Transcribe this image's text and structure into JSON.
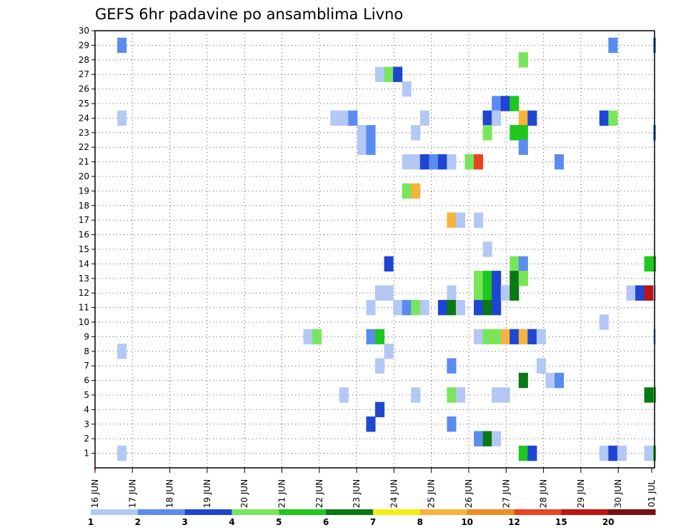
{
  "chart_data": {
    "type": "heatmap",
    "title": "GEFS 6hr padavine po ansamblima Livno",
    "xlabel": "",
    "ylabel": "",
    "x_ticks": [
      "16 JUN",
      "17 JUN",
      "18 JUN",
      "19 JUN",
      "20 JUN",
      "21 JUN",
      "22 JUN",
      "23 JUN",
      "24 JUN",
      "25 JUN",
      "26 JUN",
      "27 JUN",
      "28 JUN",
      "29 JUN",
      "30 JUN",
      "01 JUL"
    ],
    "y_ticks": [
      "1",
      "2",
      "3",
      "4",
      "5",
      "6",
      "7",
      "8",
      "9",
      "10",
      "11",
      "12",
      "13",
      "14",
      "15",
      "16",
      "17",
      "18",
      "19",
      "20",
      "21",
      "22",
      "23",
      "24",
      "25",
      "26",
      "27",
      "28",
      "29",
      "30"
    ],
    "x_range_days": [
      0,
      15.3
    ],
    "y_range": [
      0,
      30
    ],
    "grid": "dotted",
    "legend": {
      "placement": "bottom",
      "labels": [
        "1",
        "2",
        "3",
        "4",
        "5",
        "6",
        "7",
        "8",
        "10",
        "12",
        "15",
        "20"
      ],
      "colors": [
        "#b4c8f5",
        "#5a8cf0",
        "#1e46d2",
        "#78e65a",
        "#1ec81e",
        "#0a7814",
        "#f0f014",
        "#f5b43c",
        "#f08c28",
        "#e6461e",
        "#be1414",
        "#781010"
      ]
    },
    "color_bins": [
      1,
      2,
      3,
      4,
      5,
      6,
      7,
      8,
      10,
      12,
      15,
      20
    ],
    "cells": [
      [
        0.72,
        29,
        2
      ],
      [
        0.72,
        24,
        1
      ],
      [
        0.72,
        8,
        1
      ],
      [
        0.72,
        1,
        1
      ],
      [
        5.7,
        9,
        1
      ],
      [
        5.94,
        9,
        4
      ],
      [
        6.42,
        24,
        1
      ],
      [
        6.66,
        24,
        1
      ],
      [
        6.9,
        24,
        2
      ],
      [
        6.66,
        5,
        1
      ],
      [
        7.14,
        23,
        1
      ],
      [
        7.14,
        22,
        1
      ],
      [
        7.38,
        23,
        2
      ],
      [
        7.38,
        22,
        2
      ],
      [
        7.38,
        11,
        1
      ],
      [
        7.38,
        9,
        2
      ],
      [
        7.38,
        3,
        3
      ],
      [
        7.62,
        27,
        1
      ],
      [
        7.62,
        12,
        1
      ],
      [
        7.62,
        7,
        1
      ],
      [
        7.62,
        9,
        5
      ],
      [
        7.62,
        4,
        3
      ],
      [
        7.86,
        27,
        4
      ],
      [
        7.86,
        14,
        3
      ],
      [
        7.86,
        12,
        1
      ],
      [
        7.86,
        8,
        1
      ],
      [
        8.1,
        27,
        3
      ],
      [
        8.1,
        11,
        1
      ],
      [
        8.34,
        26,
        1
      ],
      [
        8.34,
        21,
        1
      ],
      [
        8.34,
        19,
        4
      ],
      [
        8.34,
        11,
        2
      ],
      [
        8.58,
        23,
        1
      ],
      [
        8.58,
        21,
        1
      ],
      [
        8.58,
        19,
        8
      ],
      [
        8.58,
        11,
        4
      ],
      [
        8.58,
        5,
        1
      ],
      [
        8.82,
        24,
        1
      ],
      [
        8.82,
        21,
        3
      ],
      [
        8.82,
        11,
        1
      ],
      [
        9.06,
        21,
        2
      ],
      [
        9.3,
        21,
        3
      ],
      [
        9.3,
        11,
        3
      ],
      [
        9.54,
        21,
        1
      ],
      [
        9.54,
        17,
        8
      ],
      [
        9.54,
        12,
        1
      ],
      [
        9.54,
        11,
        6
      ],
      [
        9.54,
        7,
        2
      ],
      [
        9.54,
        5,
        4
      ],
      [
        9.54,
        3,
        2
      ],
      [
        9.78,
        17,
        1
      ],
      [
        9.78,
        11,
        1
      ],
      [
        9.78,
        5,
        1
      ],
      [
        10.02,
        21,
        4
      ],
      [
        10.26,
        21,
        10
      ],
      [
        10.26,
        17,
        1
      ],
      [
        10.26,
        13,
        4
      ],
      [
        10.26,
        12,
        4
      ],
      [
        10.26,
        11,
        3
      ],
      [
        10.26,
        9,
        1
      ],
      [
        10.26,
        2,
        2
      ],
      [
        10.5,
        24,
        3
      ],
      [
        10.5,
        23,
        4
      ],
      [
        10.5,
        15,
        1
      ],
      [
        10.5,
        13,
        5
      ],
      [
        10.5,
        12,
        5
      ],
      [
        10.5,
        11,
        6
      ],
      [
        10.5,
        9,
        4
      ],
      [
        10.5,
        2,
        6
      ],
      [
        10.74,
        25,
        2
      ],
      [
        10.74,
        24,
        1
      ],
      [
        10.74,
        13,
        3
      ],
      [
        10.74,
        12,
        3
      ],
      [
        10.74,
        11,
        3
      ],
      [
        10.74,
        9,
        4
      ],
      [
        10.74,
        5,
        1
      ],
      [
        10.74,
        2,
        1
      ],
      [
        10.98,
        25,
        3
      ],
      [
        10.98,
        12,
        1
      ],
      [
        10.98,
        9,
        8
      ],
      [
        10.98,
        5,
        1
      ],
      [
        11.22,
        25,
        5
      ],
      [
        11.22,
        23,
        5
      ],
      [
        11.22,
        14,
        4
      ],
      [
        11.22,
        13,
        6
      ],
      [
        11.22,
        12,
        6
      ],
      [
        11.22,
        9,
        3
      ],
      [
        11.46,
        28,
        4
      ],
      [
        11.46,
        24,
        8
      ],
      [
        11.46,
        23,
        5
      ],
      [
        11.46,
        22,
        2
      ],
      [
        11.46,
        14,
        2
      ],
      [
        11.46,
        13,
        4
      ],
      [
        11.46,
        9,
        8
      ],
      [
        11.46,
        6,
        6
      ],
      [
        11.46,
        1,
        5
      ],
      [
        11.7,
        24,
        3
      ],
      [
        11.7,
        9,
        3
      ],
      [
        11.7,
        1,
        3
      ],
      [
        11.94,
        9,
        1
      ],
      [
        11.94,
        7,
        1
      ],
      [
        12.18,
        6,
        1
      ],
      [
        12.42,
        21,
        2
      ],
      [
        12.42,
        6,
        2
      ],
      [
        13.62,
        24,
        3
      ],
      [
        13.62,
        10,
        1
      ],
      [
        13.62,
        1,
        1
      ],
      [
        13.86,
        29,
        2
      ],
      [
        13.86,
        24,
        4
      ],
      [
        13.86,
        1,
        3
      ],
      [
        14.1,
        1,
        1
      ],
      [
        14.34,
        12,
        1
      ],
      [
        14.58,
        12,
        3
      ],
      [
        14.82,
        14,
        5
      ],
      [
        14.82,
        12,
        11
      ],
      [
        14.82,
        5,
        6
      ],
      [
        14.82,
        1,
        1
      ],
      [
        15.06,
        29,
        2
      ],
      [
        15.06,
        23,
        2
      ],
      [
        15.06,
        14,
        5
      ],
      [
        15.06,
        12,
        1
      ],
      [
        15.06,
        9,
        1
      ],
      [
        15.06,
        5,
        5
      ],
      [
        15.06,
        1,
        5
      ],
      [
        15.3,
        4,
        2
      ],
      [
        15.3,
        1,
        1
      ]
    ]
  }
}
